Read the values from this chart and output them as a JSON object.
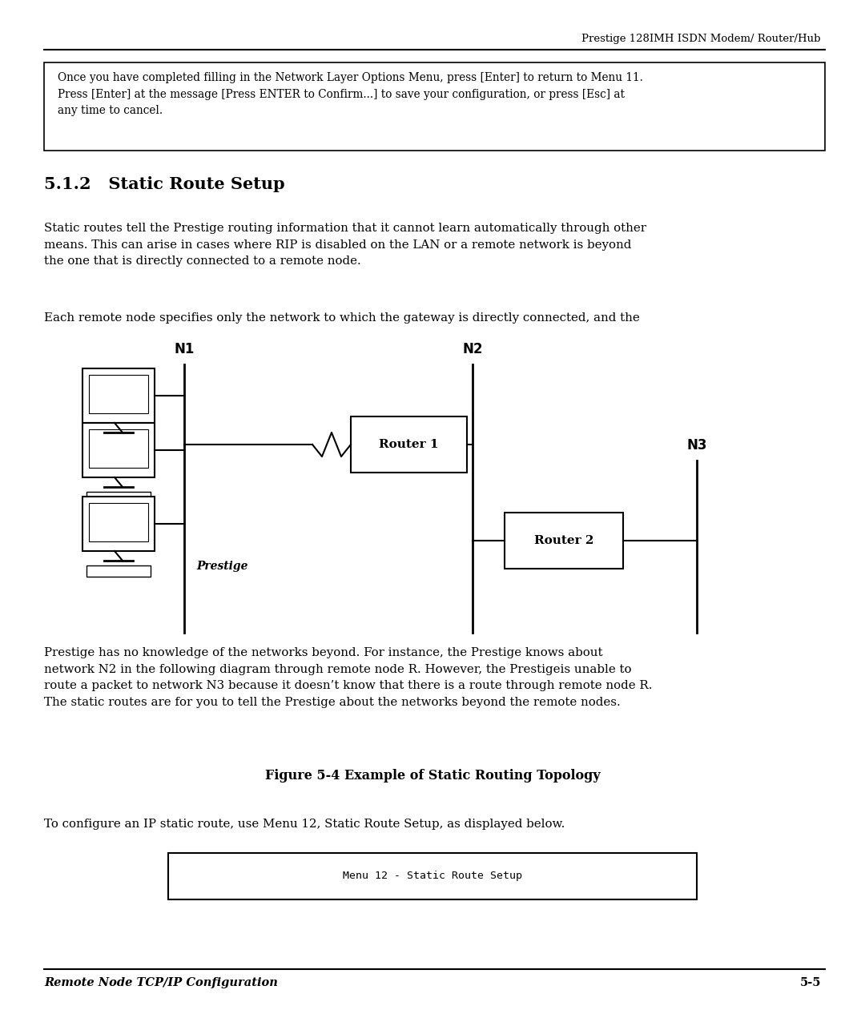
{
  "bg_color": "#ffffff",
  "header_text": "Prestige 128IMH ISDN Modem/ Router/Hub",
  "box_text": "Once you have completed filling in the Network Layer Options Menu, press [Enter] to return to Menu 11.\nPress [Enter] at the message [Press ENTER to Confirm...] to save your configuration, or press [Esc] at\nany time to cancel.",
  "section_title": "5.1.2   Static Route Setup",
  "para1": "Static routes tell the Prestige routing information that it cannot learn automatically through other\nmeans. This can arise in cases where RIP is disabled on the LAN or a remote network is beyond\nthe one that is directly connected to a remote node.",
  "para2": "Each remote node specifies only the network to which the gateway is directly connected, and the",
  "para3": "Prestige has no knowledge of the networks beyond. For instance, the Prestige knows about\nnetwork N2 in the following diagram through remote node R. However, the Prestigeis unable to\nroute a packet to network N3 because it doesn’t know that there is a route through remote node R.\nThe static routes are for you to tell the Prestige about the networks beyond the remote nodes.",
  "figure_caption": "Figure 5-4 Example of Static Routing Topology",
  "para4": "To configure an IP static route, use Menu 12, Static Route Setup, as displayed below.",
  "menu_text": "Menu 12 - Static Route Setup",
  "footer_left": "Remote Node TCP/IP Configuration",
  "footer_right": "5-5",
  "diagram": {
    "n1_label": "N1",
    "n2_label": "N2",
    "n3_label": "N3",
    "router1_label": "Router 1",
    "router2_label": "Router 2",
    "prestige_label": "Prestige"
  }
}
